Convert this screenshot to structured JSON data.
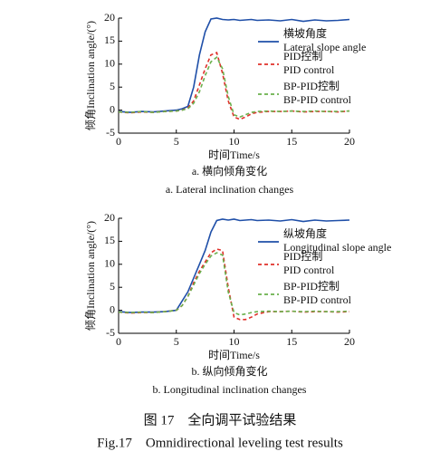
{
  "chart_data": [
    {
      "type": "line",
      "xlabel": "时间Time/s",
      "ylabel": "倾角Inclination angle/(°)",
      "caption": "a. 横向倾角变化",
      "caption_en": "a. Lateral inclination changes",
      "xlim": [
        0,
        20
      ],
      "ylim": [
        -5,
        20
      ],
      "xticks": [
        0,
        5,
        10,
        15,
        20
      ],
      "yticks": [
        -5,
        0,
        5,
        10,
        15,
        20
      ],
      "x": [
        0,
        1,
        2,
        3,
        4,
        5,
        5.5,
        6,
        6.5,
        7,
        7.5,
        8,
        8.5,
        9,
        9.5,
        10,
        10.5,
        11,
        11.5,
        12,
        13,
        14,
        15,
        16,
        17,
        18,
        19,
        20
      ],
      "series": [
        {
          "name": "横坡角度",
          "name_en": "Lateral slope angle",
          "color": "#1f4fa8",
          "dash": "solid",
          "values": [
            -0.3,
            -0.5,
            -0.3,
            -0.4,
            -0.2,
            0,
            0.3,
            0.8,
            5,
            12,
            17,
            19.8,
            20,
            19.7,
            19.6,
            19.7,
            19.5,
            19.6,
            19.7,
            19.5,
            19.6,
            19.4,
            19.7,
            19.3,
            19.6,
            19.4,
            19.5,
            19.7
          ]
        },
        {
          "name": "PID控制",
          "name_en": "PID control",
          "color": "#e0302a",
          "dash": "dashed",
          "values": [
            -0.4,
            -0.6,
            -0.4,
            -0.5,
            -0.3,
            -0.2,
            0,
            0.5,
            2,
            5.5,
            9,
            12,
            12.5,
            8,
            2,
            -1.5,
            -2,
            -1.5,
            -0.8,
            -0.5,
            -0.3,
            -0.3,
            -0.2,
            -0.4,
            -0.3,
            -0.3,
            -0.4,
            -0.2
          ]
        },
        {
          "name": "BP-PID控制",
          "name_en": "BP-PID control",
          "color": "#6ab04c",
          "dash": "dashed",
          "values": [
            -0.4,
            -0.5,
            -0.3,
            -0.5,
            -0.3,
            -0.2,
            0,
            0.3,
            1.5,
            4,
            7.5,
            10.5,
            11.5,
            9,
            3,
            -1,
            -1.5,
            -1,
            -0.5,
            -0.3,
            -0.2,
            -0.3,
            -0.2,
            -0.3,
            -0.2,
            -0.3,
            -0.3,
            -0.2
          ]
        }
      ]
    },
    {
      "type": "line",
      "xlabel": "时间Time/s",
      "ylabel": "倾角Inclination angle/(°)",
      "caption": "b. 纵向倾角变化",
      "caption_en": "b. Longitudinal inclination changes",
      "xlim": [
        0,
        20
      ],
      "ylim": [
        -5,
        20
      ],
      "xticks": [
        0,
        5,
        10,
        15,
        20
      ],
      "yticks": [
        -5,
        0,
        5,
        10,
        15,
        20
      ],
      "x": [
        0,
        1,
        2,
        3,
        4,
        5,
        5.5,
        6,
        6.5,
        7,
        7.5,
        8,
        8.5,
        9,
        9.5,
        10,
        10.5,
        11,
        11.5,
        12,
        13,
        14,
        15,
        16,
        17,
        18,
        19,
        20
      ],
      "series": [
        {
          "name": "纵坡角度",
          "name_en": "Longitudinal slope angle",
          "color": "#1f4fa8",
          "dash": "solid",
          "values": [
            -0.3,
            -0.5,
            -0.4,
            -0.4,
            -0.3,
            0,
            2,
            4,
            7,
            10,
            13,
            17,
            19.5,
            19.8,
            19.6,
            19.8,
            19.5,
            19.6,
            19.7,
            19.5,
            19.6,
            19.4,
            19.7,
            19.3,
            19.6,
            19.4,
            19.5,
            19.6
          ]
        },
        {
          "name": "PID控制",
          "name_en": "PID control",
          "color": "#e0302a",
          "dash": "dashed",
          "values": [
            -0.4,
            -0.6,
            -0.5,
            -0.5,
            -0.3,
            0,
            1,
            3,
            6,
            8.5,
            10.5,
            12.5,
            13.3,
            13,
            5,
            -1.5,
            -2,
            -2,
            -1.5,
            -0.8,
            -0.3,
            -0.3,
            -0.2,
            -0.4,
            -0.3,
            -0.3,
            -0.4,
            -0.3
          ]
        },
        {
          "name": "BP-PID控制",
          "name_en": "BP-PID control",
          "color": "#6ab04c",
          "dash": "dashed",
          "values": [
            -0.4,
            -0.5,
            -0.4,
            -0.5,
            -0.3,
            0,
            1,
            3,
            5.5,
            8,
            10,
            11.8,
            12.5,
            12,
            4,
            -0.5,
            -1,
            -0.8,
            -0.5,
            -0.3,
            -0.2,
            -0.3,
            -0.2,
            -0.3,
            -0.2,
            -0.3,
            -0.3,
            -0.2
          ]
        }
      ]
    }
  ],
  "figure_title": "图 17　全向调平试验结果",
  "figure_title_en": "Fig.17　Omnidirectional leveling test results"
}
